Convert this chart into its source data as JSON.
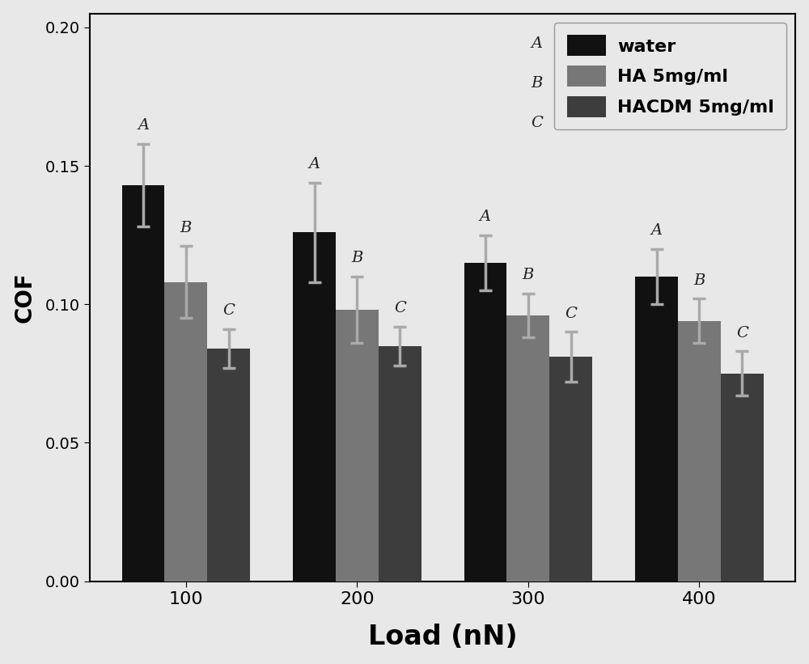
{
  "categories": [
    100,
    200,
    300,
    400
  ],
  "series": {
    "water": {
      "values": [
        0.143,
        0.126,
        0.115,
        0.11
      ],
      "errors": [
        0.015,
        0.018,
        0.01,
        0.01
      ],
      "color": "#111111",
      "label": "water"
    },
    "HA": {
      "values": [
        0.108,
        0.098,
        0.096,
        0.094
      ],
      "errors": [
        0.013,
        0.012,
        0.008,
        0.008
      ],
      "color": "#777777",
      "label": "HA 5mg/ml"
    },
    "HACDM": {
      "values": [
        0.084,
        0.085,
        0.081,
        0.075
      ],
      "errors": [
        0.007,
        0.007,
        0.009,
        0.008
      ],
      "color": "#3d3d3d",
      "label": "HACDM 5mg/ml"
    }
  },
  "ylabel": "COF",
  "xlabel": "Load (nN)",
  "ylim": [
    0.0,
    0.205
  ],
  "yticks": [
    0.0,
    0.05,
    0.1,
    0.15,
    0.2
  ],
  "bar_width": 0.25,
  "error_color": "#aaaaaa",
  "background_color": "#e8e8e8",
  "axis_bg_color": "#e8e8e8",
  "legend_abc": [
    "A",
    "B",
    "C"
  ],
  "legend_labels": [
    "water",
    "HA 5mg/ml",
    "HACDM 5mg/ml"
  ],
  "legend_colors": [
    "#111111",
    "#777777",
    "#3d3d3d"
  ]
}
